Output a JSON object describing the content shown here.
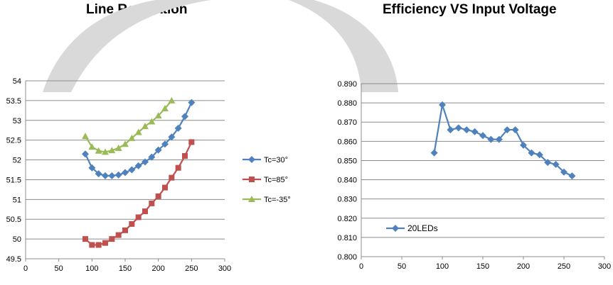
{
  "chart_data": [
    {
      "type": "line",
      "title": "Line Regulation",
      "xlim": [
        0,
        300
      ],
      "ylim": [
        49.5,
        54
      ],
      "xticks": [
        0,
        50,
        100,
        150,
        200,
        250,
        300
      ],
      "yticks": [
        49.5,
        50,
        50.5,
        51,
        51.5,
        52,
        52.5,
        53,
        53.5,
        54
      ],
      "ytick_labels": [
        "49.5",
        "50",
        "50.5",
        "51",
        "51.5",
        "52",
        "52.5",
        "53",
        "53.5",
        "54"
      ],
      "grid": true,
      "legend_position": "right",
      "series": [
        {
          "name": "Tc=30°",
          "color": "#4f81bd",
          "marker": "diamond",
          "x": [
            90,
            100,
            110,
            120,
            130,
            140,
            150,
            160,
            170,
            180,
            190,
            200,
            210,
            220,
            230,
            240,
            250
          ],
          "y": [
            52.15,
            51.8,
            51.65,
            51.6,
            51.6,
            51.62,
            51.68,
            51.75,
            51.85,
            51.95,
            52.07,
            52.25,
            52.4,
            52.58,
            52.8,
            53.1,
            53.45
          ]
        },
        {
          "name": "Tc=85°",
          "color": "#c0504d",
          "marker": "square",
          "x": [
            90,
            100,
            110,
            120,
            130,
            140,
            150,
            160,
            170,
            180,
            190,
            200,
            210,
            220,
            230,
            240,
            250
          ],
          "y": [
            50.0,
            49.85,
            49.85,
            49.9,
            50.0,
            50.1,
            50.22,
            50.38,
            50.55,
            50.7,
            50.9,
            51.08,
            51.3,
            51.55,
            51.8,
            52.1,
            52.45
          ]
        },
        {
          "name": "Tc=-35°",
          "color": "#9bbb59",
          "marker": "triangle",
          "x": [
            90,
            100,
            110,
            120,
            130,
            140,
            150,
            160,
            170,
            180,
            190,
            200,
            210,
            220
          ],
          "y": [
            52.6,
            52.33,
            52.23,
            52.2,
            52.24,
            52.3,
            52.4,
            52.55,
            52.7,
            52.85,
            52.97,
            53.12,
            53.3,
            53.5
          ]
        }
      ]
    },
    {
      "type": "line",
      "title": "Efficiency VS Input Voltage",
      "xlim": [
        0,
        300
      ],
      "ylim": [
        0.8,
        0.89
      ],
      "xticks": [
        0,
        50,
        100,
        150,
        200,
        250,
        300
      ],
      "yticks": [
        0.8,
        0.81,
        0.82,
        0.83,
        0.84,
        0.85,
        0.86,
        0.87,
        0.88,
        0.89
      ],
      "ytick_labels": [
        "0.800",
        "0.810",
        "0.820",
        "0.830",
        "0.840",
        "0.850",
        "0.860",
        "0.870",
        "0.880",
        "0.890"
      ],
      "grid": true,
      "legend_position": "bottom-left inside",
      "series": [
        {
          "name": "20LEDs",
          "color": "#4f81bd",
          "marker": "diamond",
          "x": [
            90,
            100,
            110,
            120,
            130,
            140,
            150,
            160,
            170,
            180,
            190,
            200,
            210,
            220,
            230,
            240,
            250,
            260
          ],
          "y": [
            0.854,
            0.879,
            0.866,
            0.867,
            0.866,
            0.865,
            0.863,
            0.861,
            0.861,
            0.866,
            0.866,
            0.858,
            0.854,
            0.853,
            0.849,
            0.848,
            0.844,
            0.842
          ]
        }
      ]
    }
  ],
  "colors": {
    "watermark": "#d9d9d9"
  }
}
